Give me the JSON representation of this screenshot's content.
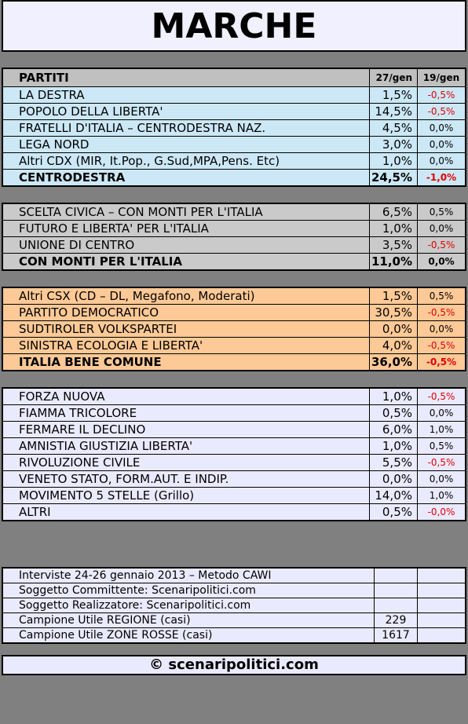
{
  "title": "MARCHE",
  "header": [
    "PARTITI",
    "27/gen",
    "19/gen"
  ],
  "groups": [
    {
      "rows": [
        [
          "LA DESTRA",
          "1,5%",
          "-0,5%"
        ],
        [
          "POPOLO DELLA LIBERTA'",
          "14,5%",
          "-0,5%"
        ],
        [
          "FRATELLI D'ITALIA – CENTRODESTRA NAZ.",
          "4,5%",
          "0,0%"
        ],
        [
          "LEGA NORD",
          "3,0%",
          "0,0%"
        ],
        [
          "Altri CDX (MIR, It.Pop., G.Sud,MPA,Pens. Etc)",
          "1,0%",
          "0,0%"
        ]
      ],
      "total": [
        "CENTRODESTRA",
        "24,5%",
        "-1,0%"
      ]
    },
    {
      "rows": [
        [
          "SCELTA CIVICA – CON MONTI PER L'ITALIA",
          "6,5%",
          "0,5%"
        ],
        [
          "FUTURO E LIBERTA' PER L'ITALIA",
          "1,0%",
          "0,0%"
        ],
        [
          "UNIONE DI CENTRO",
          "3,5%",
          "-0,5%"
        ]
      ],
      "total": [
        "CON MONTI PER L'ITALIA",
        "11,0%",
        "0,0%"
      ]
    },
    {
      "rows": [
        [
          "Altri CSX (CD – DL, Megafono, Moderati)",
          "1,5%",
          "0,5%"
        ],
        [
          "PARTITO DEMOCRATICO",
          "30,5%",
          "-0,5%"
        ],
        [
          "SUDTIROLER VOLKSPARTEI",
          "0,0%",
          "0,0%"
        ],
        [
          "SINISTRA ECOLOGIA E LIBERTA'",
          "4,0%",
          "-0,5%"
        ]
      ],
      "total": [
        "ITALIA BENE COMUNE",
        "36,0%",
        "-0,5%"
      ]
    },
    {
      "rows": [
        [
          "FORZA NUOVA",
          "1,0%",
          "-0,5%"
        ],
        [
          "FIAMMA TRICOLORE",
          "0,5%",
          "0,0%"
        ],
        [
          "FERMARE IL DECLINO",
          "6,0%",
          "1,0%"
        ],
        [
          "AMNISTIA GIUSTIZIA LIBERTA'",
          "1,0%",
          "0,5%"
        ],
        [
          "RIVOLUZIONE CIVILE",
          "5,5%",
          "-0,5%"
        ],
        [
          "VENETO STATO, FORM.AUT. E INDIP.",
          "0,0%",
          "0,0%"
        ],
        [
          "MOVIMENTO 5 STELLE (Grillo)",
          "14,0%",
          "1,0%"
        ],
        [
          "ALTRI",
          "0,5%",
          "-0,0%"
        ]
      ]
    }
  ],
  "info": [
    [
      "Interviste 24-26 gennaio 2013 – Metodo CAWI"
    ],
    [
      "Soggetto Committente: Scenaripolitici.com"
    ],
    [
      "Soggetto Realizzatore: Scenaripolitici.com"
    ],
    [
      "Campione Utile REGIONE (casi)",
      "229"
    ],
    [
      "Campione Utile ZONE ROSSE (casi)",
      "1617"
    ]
  ],
  "footer": "© scenaripolitici.com"
}
